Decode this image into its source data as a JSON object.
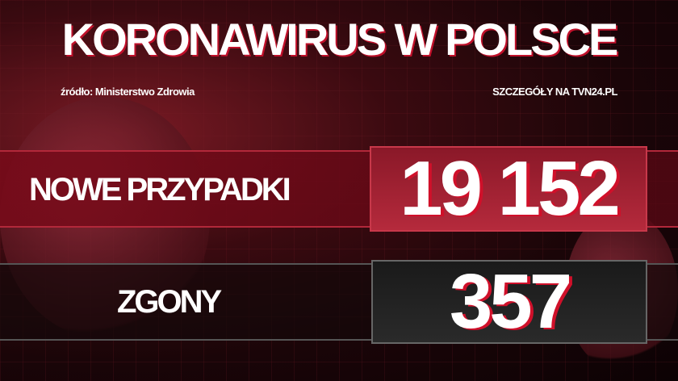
{
  "header": {
    "title": "KORONAWIRUS W POLSCE",
    "source": "źródło: Ministerstwo Zdrowia",
    "details": "SZCZEGÓŁY NA TVN24.PL"
  },
  "stats": [
    {
      "label": "NOWE PRZYPADKI",
      "value": "19 152"
    },
    {
      "label": "ZGONY",
      "value": "357"
    }
  ],
  "colors": {
    "accent": "#b52a3c",
    "background": "#1a0508"
  }
}
